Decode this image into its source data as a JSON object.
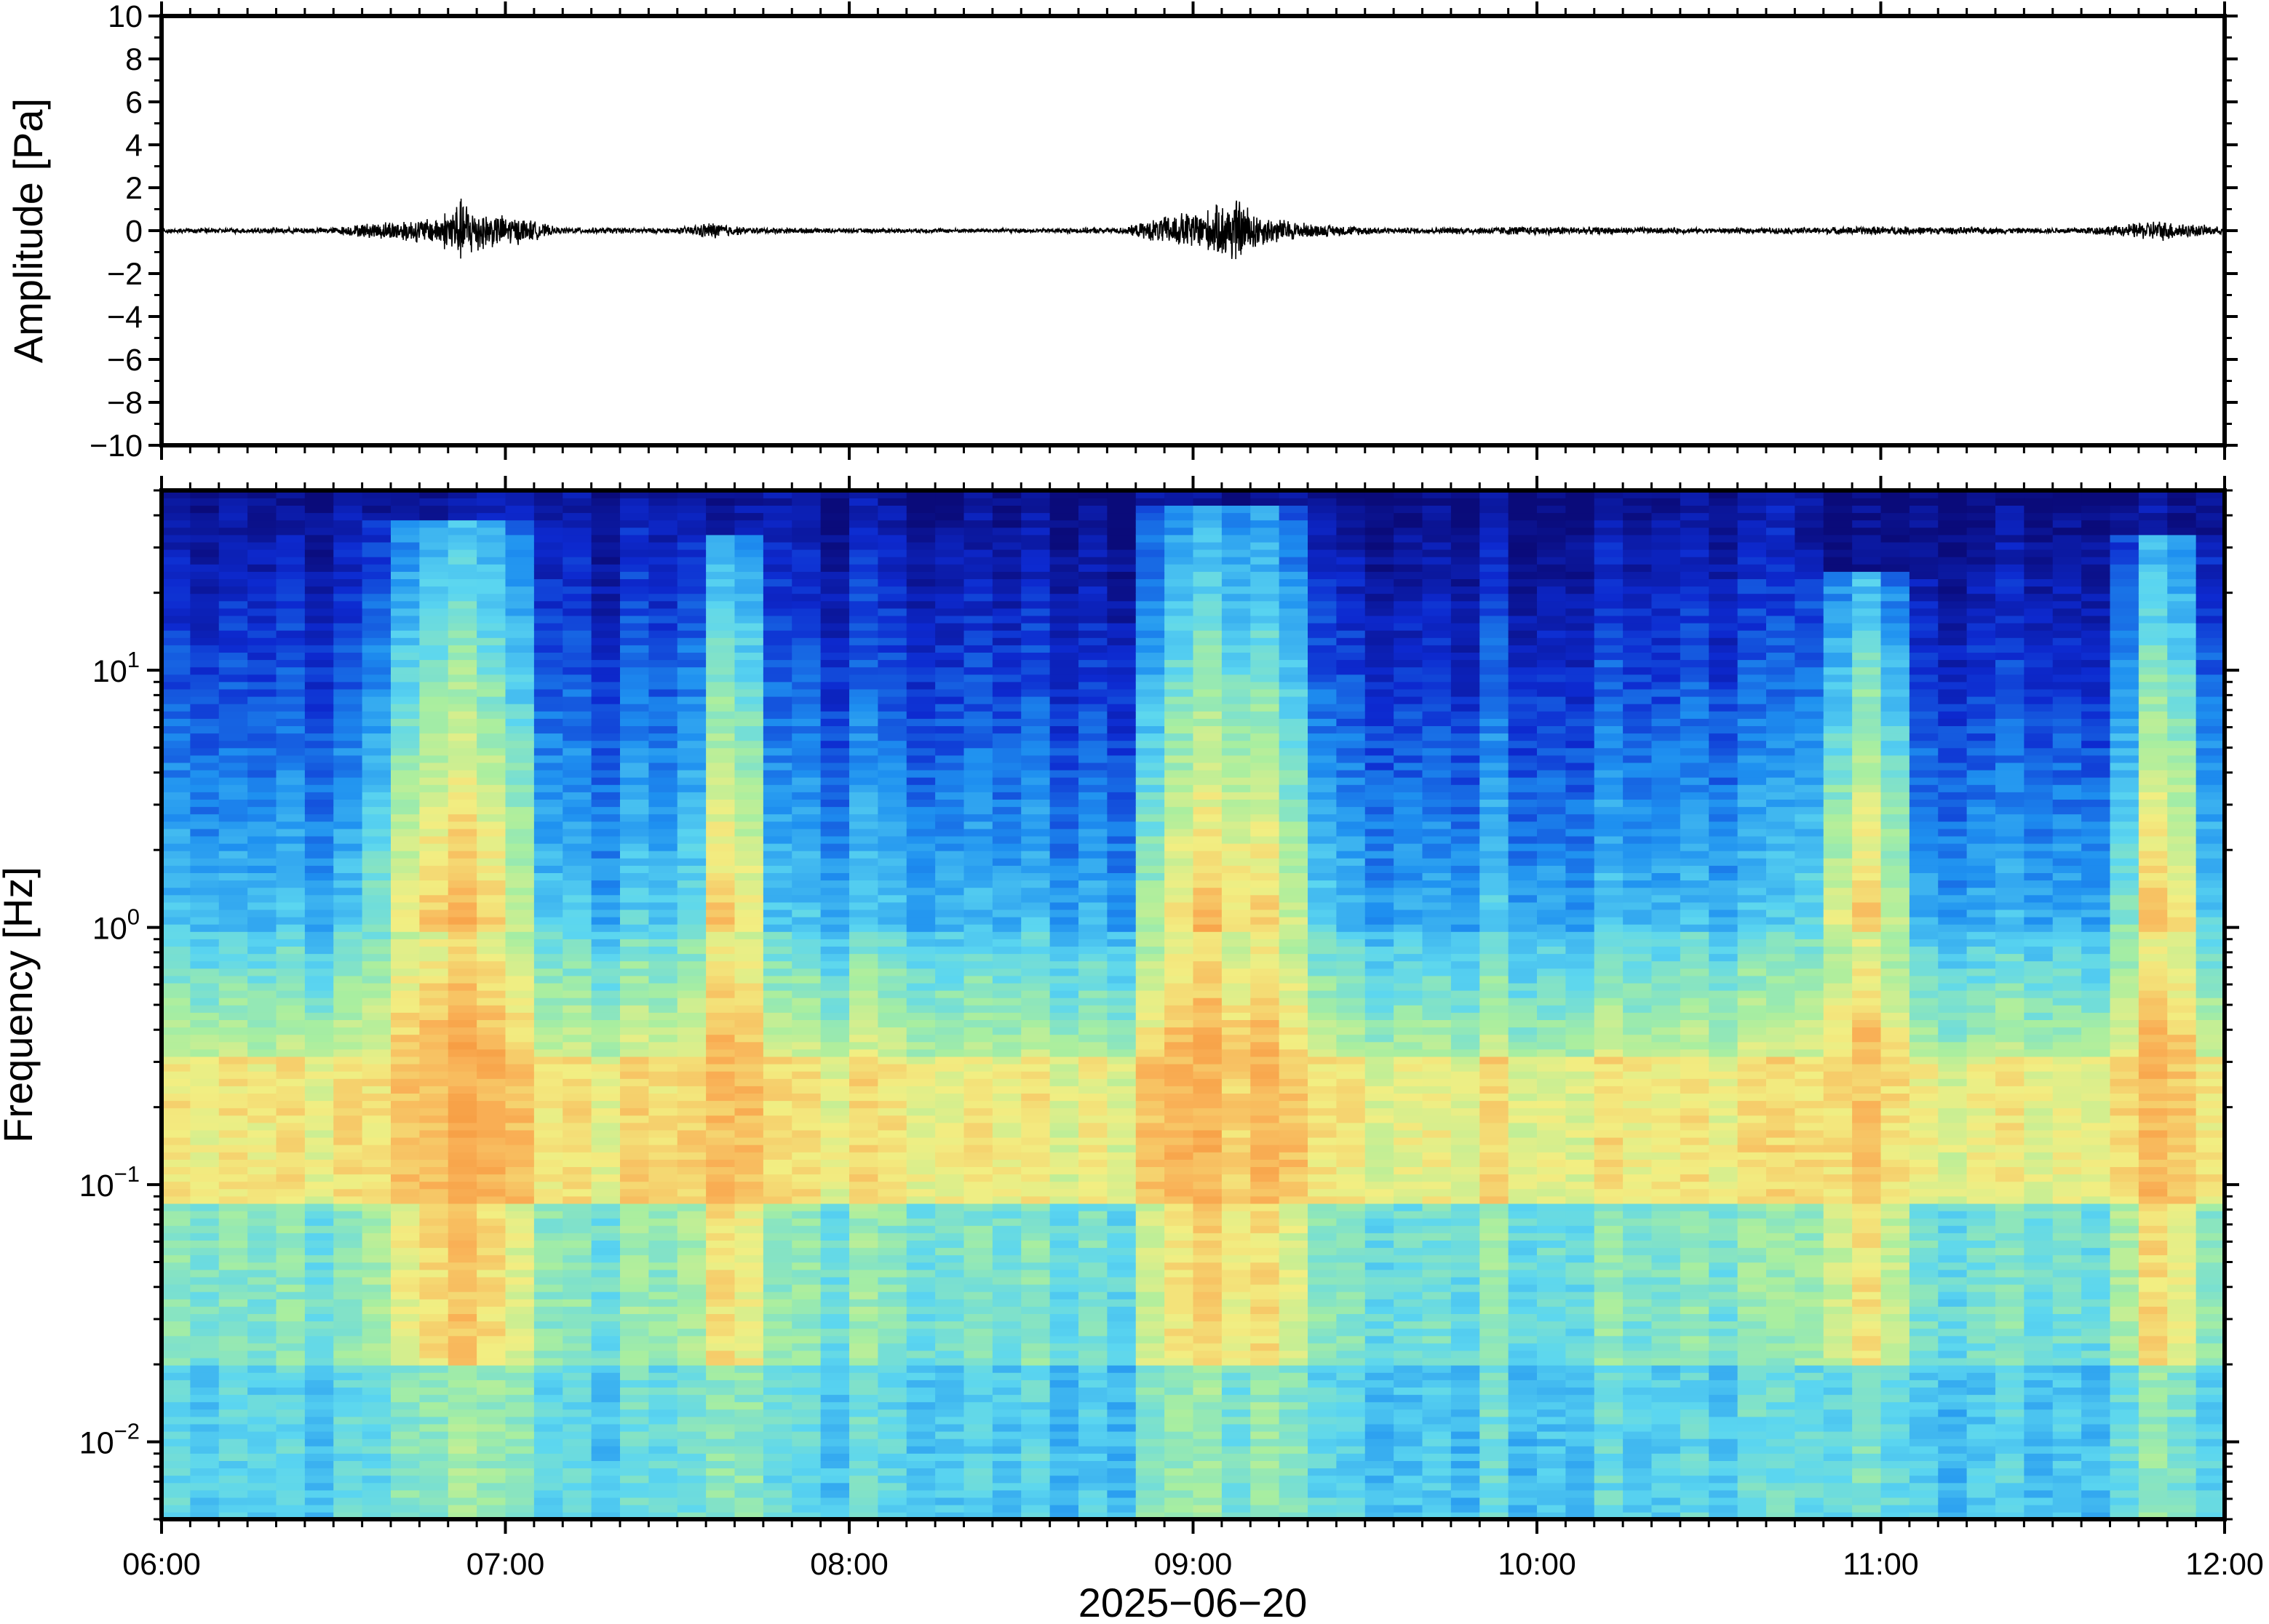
{
  "chart_data": [
    {
      "type": "line",
      "panel": "waveform",
      "title": "",
      "ylabel": "Amplitude [Pa]",
      "ylim": [
        -10,
        10
      ],
      "y_ticks": [
        10,
        8,
        6,
        4,
        2,
        0,
        -2,
        -4,
        -6,
        -8,
        -10
      ],
      "y_tick_labels": [
        "10",
        "8",
        "6",
        "4",
        "2",
        "0",
        "−2",
        "−4",
        "−6",
        "−8",
        "−10"
      ],
      "xlim": [
        "06:00",
        "12:00"
      ],
      "series": [
        {
          "color": "#000000",
          "x_hours": [
            6.0,
            6.5,
            6.6,
            6.7,
            6.8,
            6.87,
            6.95,
            7.05,
            7.15,
            7.5,
            7.6,
            7.7,
            8.0,
            8.5,
            8.8,
            8.95,
            9.05,
            9.12,
            9.2,
            9.35,
            9.6,
            9.95,
            10.5,
            10.8,
            11.0,
            11.5,
            11.7,
            11.8,
            12.0
          ],
          "envelope_pa": [
            0.1,
            0.15,
            0.35,
            0.5,
            0.6,
            1.5,
            0.8,
            0.6,
            0.15,
            0.12,
            0.4,
            0.15,
            0.1,
            0.1,
            0.15,
            0.8,
            1.0,
            1.6,
            0.7,
            0.3,
            0.12,
            0.2,
            0.12,
            0.15,
            0.2,
            0.12,
            0.25,
            0.5,
            0.15
          ]
        }
      ]
    },
    {
      "type": "heatmap",
      "panel": "spectrogram",
      "title": "",
      "ylabel": "Frequency [Hz]",
      "yscale": "log",
      "ylim": [
        0.005,
        50
      ],
      "y_ticks": [
        0.01,
        0.1,
        1,
        10
      ],
      "y_tick_labels": [
        {
          "base": "10",
          "exp": "−2"
        },
        {
          "base": "10",
          "exp": "−1"
        },
        {
          "base": "10",
          "exp": "0"
        },
        {
          "base": "10",
          "exp": "1"
        }
      ],
      "xlabel": "2025−06−20",
      "xlim": [
        "06:00",
        "12:00"
      ],
      "x_ticks": [
        "06:00",
        "07:00",
        "08:00",
        "09:00",
        "10:00",
        "11:00",
        "12:00"
      ],
      "colormap": [
        "#0a0b7a",
        "#0d2ad0",
        "#1e90f0",
        "#5bd6f0",
        "#a8eea0",
        "#f2ee82",
        "#f9b056",
        "#f48a30"
      ],
      "activity_bursts_hours": [
        {
          "start": 6.6,
          "end": 7.1,
          "peak_to_hz": 40
        },
        {
          "start": 7.55,
          "end": 7.75,
          "peak_to_hz": 35
        },
        {
          "start": 8.85,
          "end": 9.35,
          "peak_to_hz": 45
        },
        {
          "start": 10.8,
          "end": 11.1,
          "peak_to_hz": 25
        },
        {
          "start": 11.7,
          "end": 11.95,
          "peak_to_hz": 35
        }
      ],
      "microseism_band_hz": [
        0.1,
        0.3
      ]
    }
  ]
}
